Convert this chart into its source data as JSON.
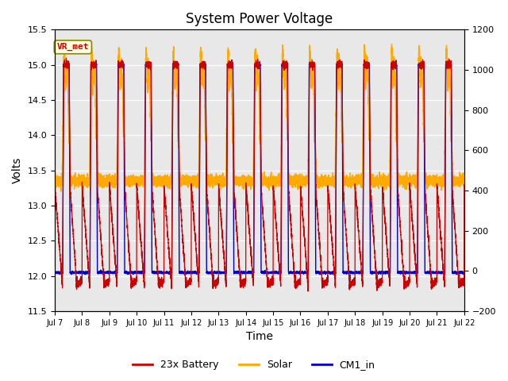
{
  "title": "System Power Voltage",
  "xlabel": "Time",
  "ylabel_left": "Volts",
  "ylim_left": [
    11.5,
    15.5
  ],
  "ylim_right": [
    -200,
    1200
  ],
  "num_days": 15,
  "xtick_labels": [
    "Jul 7",
    "Jul 8",
    "Jul 9",
    "Jul 10",
    "Jul 11",
    "Jul 12",
    "Jul 13",
    "Jul 14",
    "Jul 15",
    "Jul 16",
    "Jul 17",
    "Jul 18",
    "Jul 19",
    "Jul 20",
    "Jul 21",
    "Jul 22"
  ],
  "legend_labels": [
    "23x Battery",
    "Solar",
    "CM1_in"
  ],
  "legend_colors": [
    "#cc0000",
    "#ffaa00",
    "#0000cc"
  ],
  "vr_met_color": "#cc0000",
  "vr_met_bg": "#ffffdd",
  "bg_color": "#e8e8e8",
  "battery_color": "#cc0000",
  "solar_color": "#ffaa00",
  "cm1_color": "#0000cc",
  "points_per_day": 500
}
